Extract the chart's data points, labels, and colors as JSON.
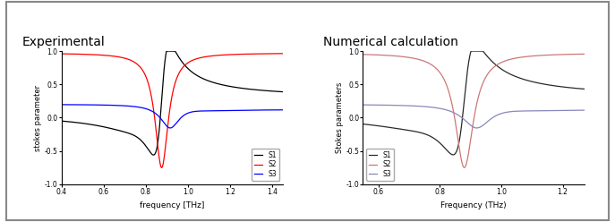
{
  "title_left": "Experimental",
  "title_right": "Numerical calculation",
  "xlabel_left": "frequency [THz]",
  "xlabel_right": "Frequency (THz)",
  "ylabel_left": "stokes parameter",
  "ylabel_right": "Stokes parameters",
  "xlim_left": [
    0.4,
    1.45
  ],
  "xlim_right": [
    0.55,
    1.27
  ],
  "ylim": [
    -1.0,
    1.0
  ],
  "xticks_left": [
    0.4,
    0.6,
    0.8,
    1.0,
    1.2,
    1.4
  ],
  "xticks_right": [
    0.6,
    0.8,
    1.0,
    1.2
  ],
  "yticks": [
    -1.0,
    -0.5,
    0.0,
    0.5,
    1.0
  ],
  "legend_labels": [
    "S1",
    "S2",
    "S3"
  ],
  "colors_left": [
    "black",
    "red",
    "blue"
  ],
  "colors_right": [
    "#2a2a2a",
    "#cc7777",
    "#8888bb"
  ],
  "fig_bg": "#d8d8d8",
  "panel_bg": "white",
  "f0_exp": 0.875,
  "f0_num": 0.88
}
